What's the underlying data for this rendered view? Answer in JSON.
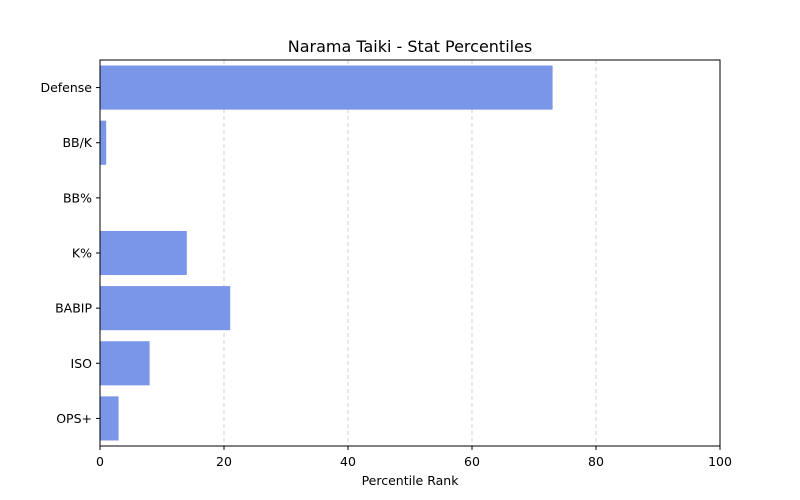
{
  "chart_data": {
    "type": "bar",
    "orientation": "horizontal",
    "title": "Narama Taiki - Stat Percentiles",
    "xlabel": "Percentile Rank",
    "ylabel": "",
    "xlim": [
      0,
      100
    ],
    "xticks": [
      0,
      20,
      40,
      60,
      80,
      100
    ],
    "categories": [
      "Defense",
      "BB/K",
      "BB%",
      "K%",
      "BABIP",
      "ISO",
      "OPS+"
    ],
    "values": [
      73,
      1,
      0,
      14,
      21,
      8,
      3
    ],
    "bar_color": "#7a96e8",
    "grid": "x-axis dashed",
    "legend": "none"
  }
}
